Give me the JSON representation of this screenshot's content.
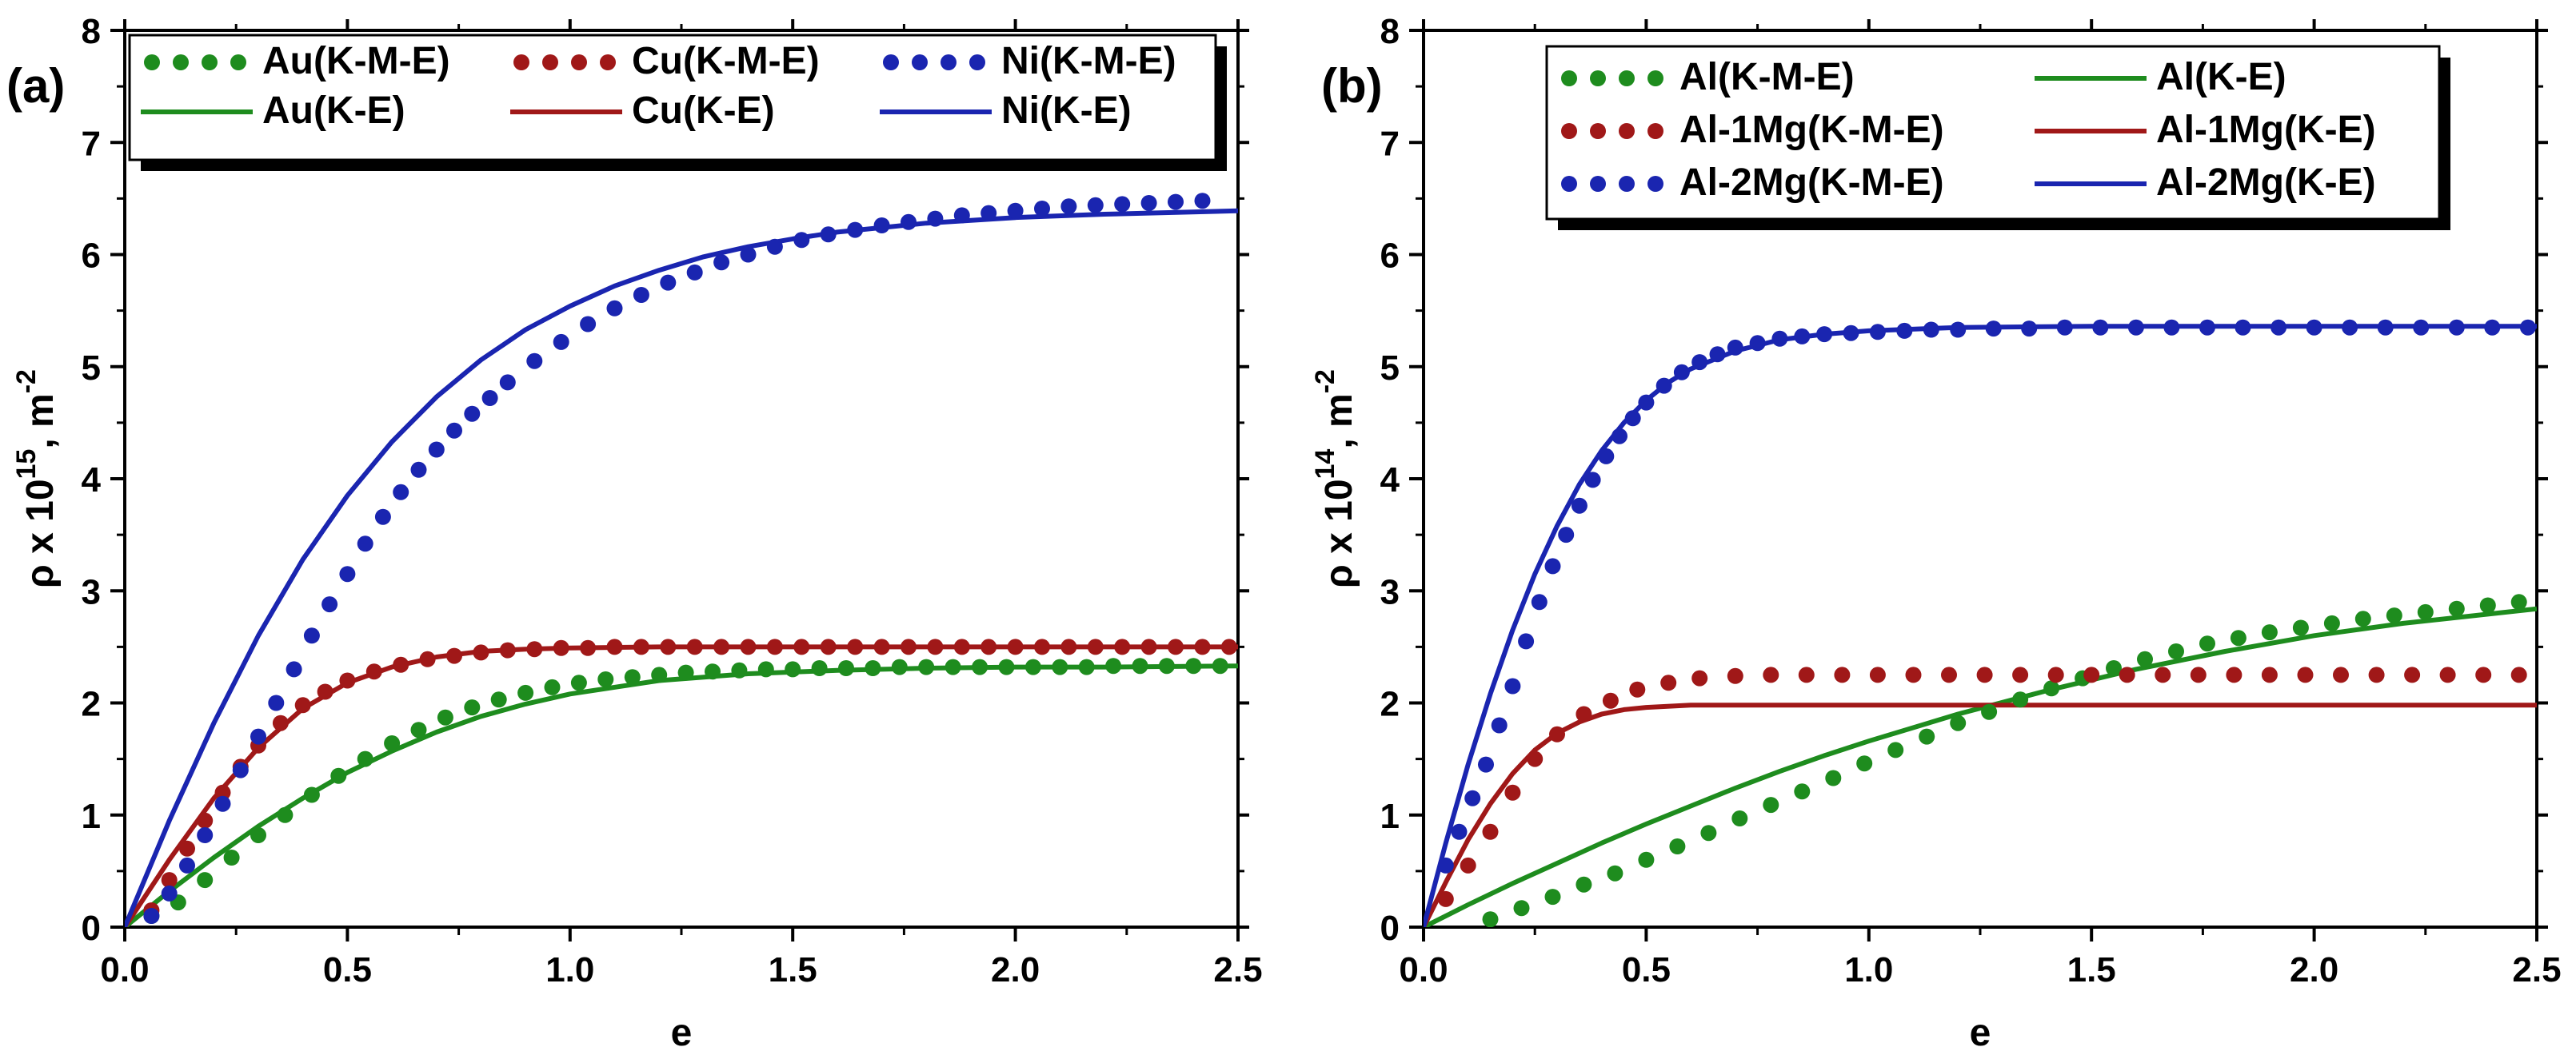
{
  "chart_data": [
    {
      "panel": "(a)",
      "type": "line",
      "xlabel": "e",
      "ylabel_main": "ρ x 10",
      "ylabel_exp": "15",
      "ylabel_unit": ", m",
      "ylabel_unit_exp": "-2",
      "xlim": [
        0,
        2.5
      ],
      "ylim": [
        0,
        8
      ],
      "xticks": [
        0.0,
        0.5,
        1.0,
        1.5,
        2.0,
        2.5
      ],
      "xtick_labels": [
        "0.0",
        "0.5",
        "1.0",
        "1.5",
        "2.0",
        "2.5"
      ],
      "yticks": [
        0,
        1,
        2,
        3,
        4,
        5,
        6,
        7,
        8
      ],
      "ytick_labels": [
        "0",
        "1",
        "2",
        "3",
        "4",
        "5",
        "6",
        "7",
        "8"
      ],
      "legend": {
        "placement": "top",
        "entries": [
          {
            "label": "Au(K-M-E)",
            "style": "dots",
            "color": "#1e8c1e"
          },
          {
            "label": "Cu(K-M-E)",
            "style": "dots",
            "color": "#a01818"
          },
          {
            "label": "Ni(K-M-E)",
            "style": "dots",
            "color": "#1a25b0"
          },
          {
            "label": "Au(K-E)",
            "style": "line",
            "color": "#1e8c1e"
          },
          {
            "label": "Cu(K-E)",
            "style": "line",
            "color": "#a01818"
          },
          {
            "label": "Ni(K-E)",
            "style": "line",
            "color": "#1a25b0"
          }
        ]
      },
      "series": [
        {
          "name": "Au(K-E)",
          "kind": "line",
          "color": "#1e8c1e",
          "x": [
            0,
            0.1,
            0.2,
            0.3,
            0.4,
            0.5,
            0.6,
            0.7,
            0.8,
            0.9,
            1.0,
            1.2,
            1.4,
            1.6,
            1.8,
            2.0,
            2.2,
            2.5
          ],
          "y": [
            0,
            0.32,
            0.62,
            0.9,
            1.15,
            1.38,
            1.57,
            1.74,
            1.88,
            1.99,
            2.08,
            2.2,
            2.26,
            2.29,
            2.31,
            2.32,
            2.32,
            2.33
          ]
        },
        {
          "name": "Cu(K-E)",
          "kind": "line",
          "color": "#a01818",
          "x": [
            0,
            0.1,
            0.2,
            0.3,
            0.4,
            0.5,
            0.6,
            0.7,
            0.8,
            0.9,
            1.0,
            1.2,
            1.5,
            2.0,
            2.5
          ],
          "y": [
            0,
            0.6,
            1.15,
            1.6,
            1.95,
            2.18,
            2.32,
            2.41,
            2.46,
            2.48,
            2.49,
            2.5,
            2.5,
            2.5,
            2.5
          ]
        },
        {
          "name": "Ni(K-E)",
          "kind": "line",
          "color": "#1a25b0",
          "x": [
            0,
            0.1,
            0.2,
            0.3,
            0.4,
            0.5,
            0.6,
            0.7,
            0.8,
            0.9,
            1.0,
            1.1,
            1.2,
            1.3,
            1.4,
            1.5,
            1.6,
            1.8,
            2.0,
            2.2,
            2.5
          ],
          "y": [
            0,
            0.95,
            1.82,
            2.6,
            3.28,
            3.85,
            4.33,
            4.73,
            5.06,
            5.33,
            5.54,
            5.72,
            5.86,
            5.98,
            6.07,
            6.14,
            6.2,
            6.28,
            6.33,
            6.36,
            6.39
          ]
        },
        {
          "name": "Au(K-M-E)",
          "kind": "dots",
          "color": "#1e8c1e",
          "x": [
            0.06,
            0.12,
            0.18,
            0.24,
            0.3,
            0.36,
            0.42,
            0.48,
            0.54,
            0.6,
            0.66,
            0.72,
            0.78,
            0.84,
            0.9,
            0.96,
            1.02,
            1.08,
            1.14,
            1.2,
            1.26,
            1.32,
            1.38,
            1.44,
            1.5,
            1.56,
            1.62,
            1.68,
            1.74,
            1.8,
            1.86,
            1.92,
            1.98,
            2.04,
            2.1,
            2.16,
            2.22,
            2.28,
            2.34,
            2.4,
            2.46
          ],
          "y": [
            0.1,
            0.22,
            0.42,
            0.62,
            0.82,
            1.0,
            1.18,
            1.35,
            1.5,
            1.64,
            1.76,
            1.87,
            1.96,
            2.03,
            2.09,
            2.14,
            2.18,
            2.21,
            2.23,
            2.25,
            2.27,
            2.28,
            2.29,
            2.3,
            2.3,
            2.31,
            2.31,
            2.31,
            2.32,
            2.32,
            2.32,
            2.32,
            2.32,
            2.32,
            2.32,
            2.32,
            2.33,
            2.33,
            2.33,
            2.33,
            2.33
          ]
        },
        {
          "name": "Cu(K-M-E)",
          "kind": "dots",
          "color": "#a01818",
          "x": [
            0.06,
            0.1,
            0.14,
            0.18,
            0.22,
            0.26,
            0.3,
            0.35,
            0.4,
            0.45,
            0.5,
            0.56,
            0.62,
            0.68,
            0.74,
            0.8,
            0.86,
            0.92,
            0.98,
            1.04,
            1.1,
            1.16,
            1.22,
            1.28,
            1.34,
            1.4,
            1.46,
            1.52,
            1.58,
            1.64,
            1.7,
            1.76,
            1.82,
            1.88,
            1.94,
            2.0,
            2.06,
            2.12,
            2.18,
            2.24,
            2.3,
            2.36,
            2.42,
            2.48
          ],
          "y": [
            0.15,
            0.42,
            0.7,
            0.95,
            1.2,
            1.43,
            1.62,
            1.82,
            1.98,
            2.1,
            2.2,
            2.28,
            2.34,
            2.39,
            2.42,
            2.45,
            2.47,
            2.48,
            2.49,
            2.49,
            2.5,
            2.5,
            2.5,
            2.5,
            2.5,
            2.5,
            2.5,
            2.5,
            2.5,
            2.5,
            2.5,
            2.5,
            2.5,
            2.5,
            2.5,
            2.5,
            2.5,
            2.5,
            2.5,
            2.5,
            2.5,
            2.5,
            2.5,
            2.5
          ]
        },
        {
          "name": "Ni(K-M-E)",
          "kind": "dots",
          "color": "#1a25b0",
          "x": [
            0.06,
            0.1,
            0.14,
            0.18,
            0.22,
            0.26,
            0.3,
            0.34,
            0.38,
            0.42,
            0.46,
            0.5,
            0.54,
            0.58,
            0.62,
            0.66,
            0.7,
            0.74,
            0.78,
            0.82,
            0.86,
            0.92,
            0.98,
            1.04,
            1.1,
            1.16,
            1.22,
            1.28,
            1.34,
            1.4,
            1.46,
            1.52,
            1.58,
            1.64,
            1.7,
            1.76,
            1.82,
            1.88,
            1.94,
            2.0,
            2.06,
            2.12,
            2.18,
            2.24,
            2.3,
            2.36,
            2.42
          ],
          "y": [
            0.1,
            0.3,
            0.55,
            0.82,
            1.1,
            1.4,
            1.7,
            2.0,
            2.3,
            2.6,
            2.88,
            3.15,
            3.42,
            3.66,
            3.88,
            4.08,
            4.26,
            4.43,
            4.58,
            4.72,
            4.86,
            5.05,
            5.22,
            5.38,
            5.52,
            5.64,
            5.75,
            5.84,
            5.93,
            6.0,
            6.07,
            6.13,
            6.18,
            6.22,
            6.26,
            6.29,
            6.32,
            6.35,
            6.37,
            6.39,
            6.41,
            6.43,
            6.44,
            6.45,
            6.46,
            6.47,
            6.48
          ]
        }
      ]
    },
    {
      "panel": "(b)",
      "type": "line",
      "xlabel": "e",
      "ylabel_main": "ρ x 10",
      "ylabel_exp": "14",
      "ylabel_unit": ", m",
      "ylabel_unit_exp": "-2",
      "xlim": [
        0,
        2.5
      ],
      "ylim": [
        0,
        8
      ],
      "xticks": [
        0.0,
        0.5,
        1.0,
        1.5,
        2.0,
        2.5
      ],
      "xtick_labels": [
        "0.0",
        "0.5",
        "1.0",
        "1.5",
        "2.0",
        "2.5"
      ],
      "yticks": [
        0,
        1,
        2,
        3,
        4,
        5,
        6,
        7,
        8
      ],
      "ytick_labels": [
        "0",
        "1",
        "2",
        "3",
        "4",
        "5",
        "6",
        "7",
        "8"
      ],
      "legend": {
        "placement": "top-right",
        "entries": [
          {
            "label": "Al(K-M-E)",
            "style": "dots",
            "color": "#1e8c1e"
          },
          {
            "label": "Al(K-E)",
            "style": "line",
            "color": "#1e8c1e"
          },
          {
            "label": "Al-1Mg(K-M-E)",
            "style": "dots",
            "color": "#a01818"
          },
          {
            "label": "Al-1Mg(K-E)",
            "style": "line",
            "color": "#a01818"
          },
          {
            "label": "Al-2Mg(K-M-E)",
            "style": "dots",
            "color": "#1a25b0"
          },
          {
            "label": "Al-2Mg(K-E)",
            "style": "line",
            "color": "#1a25b0"
          }
        ]
      },
      "series": [
        {
          "name": "Al(K-E)",
          "kind": "line",
          "color": "#1e8c1e",
          "x": [
            0,
            0.1,
            0.2,
            0.3,
            0.4,
            0.5,
            0.6,
            0.7,
            0.8,
            0.9,
            1.0,
            1.2,
            1.4,
            1.6,
            1.8,
            2.0,
            2.2,
            2.5
          ],
          "y": [
            0,
            0.2,
            0.39,
            0.57,
            0.75,
            0.92,
            1.08,
            1.24,
            1.39,
            1.53,
            1.66,
            1.9,
            2.11,
            2.3,
            2.46,
            2.6,
            2.71,
            2.84
          ]
        },
        {
          "name": "Al-1Mg(K-E)",
          "kind": "line",
          "color": "#a01818",
          "x": [
            0,
            0.05,
            0.1,
            0.15,
            0.2,
            0.25,
            0.3,
            0.35,
            0.4,
            0.45,
            0.5,
            0.6,
            0.7,
            0.8,
            1.0,
            1.5,
            2.0,
            2.5
          ],
          "y": [
            0,
            0.4,
            0.78,
            1.1,
            1.37,
            1.58,
            1.73,
            1.83,
            1.9,
            1.94,
            1.96,
            1.98,
            1.98,
            1.98,
            1.98,
            1.98,
            1.98,
            1.98
          ]
        },
        {
          "name": "Al-2Mg(K-E)",
          "kind": "line",
          "color": "#1a25b0",
          "x": [
            0,
            0.05,
            0.1,
            0.15,
            0.2,
            0.25,
            0.3,
            0.35,
            0.4,
            0.45,
            0.5,
            0.55,
            0.6,
            0.7,
            0.8,
            0.9,
            1.0,
            1.2,
            1.5,
            2.0,
            2.5
          ],
          "y": [
            0,
            0.75,
            1.45,
            2.08,
            2.65,
            3.15,
            3.58,
            3.95,
            4.25,
            4.5,
            4.7,
            4.86,
            4.98,
            5.14,
            5.24,
            5.29,
            5.32,
            5.35,
            5.36,
            5.36,
            5.36
          ]
        },
        {
          "name": "Al(K-M-E)",
          "kind": "dots",
          "color": "#1e8c1e",
          "x": [
            0.15,
            0.22,
            0.29,
            0.36,
            0.43,
            0.5,
            0.57,
            0.64,
            0.71,
            0.78,
            0.85,
            0.92,
            0.99,
            1.06,
            1.13,
            1.2,
            1.27,
            1.34,
            1.41,
            1.48,
            1.55,
            1.62,
            1.69,
            1.76,
            1.83,
            1.9,
            1.97,
            2.04,
            2.11,
            2.18,
            2.25,
            2.32,
            2.39,
            2.46
          ],
          "y": [
            0.07,
            0.17,
            0.27,
            0.38,
            0.48,
            0.6,
            0.72,
            0.84,
            0.97,
            1.09,
            1.21,
            1.33,
            1.46,
            1.58,
            1.7,
            1.82,
            1.92,
            2.03,
            2.13,
            2.22,
            2.31,
            2.39,
            2.46,
            2.53,
            2.58,
            2.63,
            2.67,
            2.71,
            2.75,
            2.78,
            2.81,
            2.84,
            2.87,
            2.9
          ]
        },
        {
          "name": "Al-1Mg(K-M-E)",
          "kind": "dots",
          "color": "#a01818",
          "x": [
            0.05,
            0.1,
            0.15,
            0.2,
            0.25,
            0.3,
            0.36,
            0.42,
            0.48,
            0.55,
            0.62,
            0.7,
            0.78,
            0.86,
            0.94,
            1.02,
            1.1,
            1.18,
            1.26,
            1.34,
            1.42,
            1.5,
            1.58,
            1.66,
            1.74,
            1.82,
            1.9,
            1.98,
            2.06,
            2.14,
            2.22,
            2.3,
            2.38,
            2.46
          ],
          "y": [
            0.25,
            0.55,
            0.85,
            1.2,
            1.5,
            1.72,
            1.9,
            2.02,
            2.12,
            2.18,
            2.22,
            2.24,
            2.25,
            2.25,
            2.25,
            2.25,
            2.25,
            2.25,
            2.25,
            2.25,
            2.25,
            2.25,
            2.25,
            2.25,
            2.25,
            2.25,
            2.25,
            2.25,
            2.25,
            2.25,
            2.25,
            2.25,
            2.25,
            2.25
          ]
        },
        {
          "name": "Al-2Mg(K-M-E)",
          "kind": "dots",
          "color": "#1a25b0",
          "x": [
            0.05,
            0.08,
            0.11,
            0.14,
            0.17,
            0.2,
            0.23,
            0.26,
            0.29,
            0.32,
            0.35,
            0.38,
            0.41,
            0.44,
            0.47,
            0.5,
            0.54,
            0.58,
            0.62,
            0.66,
            0.7,
            0.75,
            0.8,
            0.85,
            0.9,
            0.96,
            1.02,
            1.08,
            1.14,
            1.2,
            1.28,
            1.36,
            1.44,
            1.52,
            1.6,
            1.68,
            1.76,
            1.84,
            1.92,
            2.0,
            2.08,
            2.16,
            2.24,
            2.32,
            2.4,
            2.48
          ],
          "y": [
            0.55,
            0.85,
            1.15,
            1.45,
            1.8,
            2.15,
            2.55,
            2.9,
            3.22,
            3.5,
            3.76,
            3.99,
            4.2,
            4.38,
            4.54,
            4.68,
            4.83,
            4.95,
            5.04,
            5.11,
            5.17,
            5.21,
            5.25,
            5.27,
            5.29,
            5.3,
            5.31,
            5.32,
            5.33,
            5.33,
            5.34,
            5.34,
            5.35,
            5.35,
            5.35,
            5.35,
            5.35,
            5.35,
            5.35,
            5.35,
            5.35,
            5.35,
            5.35,
            5.35,
            5.35,
            5.35
          ]
        }
      ]
    }
  ]
}
